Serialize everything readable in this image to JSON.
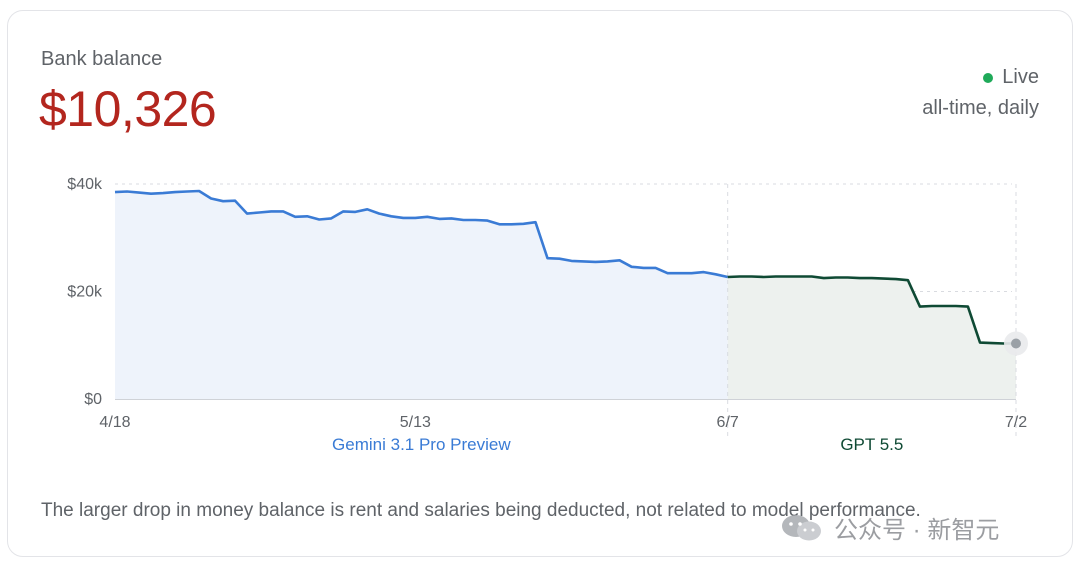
{
  "card": {
    "title": "Bank balance",
    "value": "$10,326",
    "status_label": "Live",
    "range_label": "all-time, daily",
    "footnote": "The larger drop in money balance is rent and salaries being deducted, not related to model performance.",
    "watermark": "公众号 · 新智元"
  },
  "colors": {
    "value": "#b3261e",
    "live": "#1faa59",
    "gemini_line": "#3a7bd5",
    "gemini_fill": "#eef3fb",
    "gpt_line": "#0f4a34",
    "gpt_fill": "#edf1ee",
    "grid": "#d9dbe0",
    "endpoint": "#9aa0a6"
  },
  "chart_data": {
    "type": "line",
    "ylim": [
      0,
      40000
    ],
    "y_ticks": [
      {
        "value": 0,
        "label": "$0"
      },
      {
        "value": 20000,
        "label": "$20k"
      },
      {
        "value": 40000,
        "label": "$40k"
      }
    ],
    "x_ticks": [
      "4/18",
      "5/13",
      "6/7",
      "7/2"
    ],
    "grid": true,
    "periods": [
      {
        "name": "Gemini 3.1 Pro Preview",
        "start": 0,
        "end": 51
      },
      {
        "name": "GPT 5.5",
        "start": 51,
        "end": 75
      }
    ],
    "series": [
      {
        "name": "Gemini 3.1 Pro Preview",
        "x": [
          0,
          1,
          2,
          3,
          4,
          5,
          6,
          7,
          8,
          9,
          10,
          11,
          12,
          13,
          14,
          15,
          16,
          17,
          18,
          19,
          20,
          21,
          22,
          23,
          24,
          25,
          26,
          27,
          28,
          29,
          30,
          31,
          32,
          33,
          34,
          35,
          36,
          37,
          38,
          39,
          40,
          41,
          42,
          43,
          44,
          45,
          46,
          47,
          48,
          49,
          50,
          51
        ],
        "values": [
          38500,
          38600,
          38400,
          38200,
          38300,
          38500,
          38600,
          38700,
          37300,
          36800,
          36900,
          34500,
          34700,
          34900,
          34900,
          33900,
          34000,
          33400,
          33600,
          34900,
          34800,
          35300,
          34500,
          34000,
          33700,
          33700,
          33900,
          33500,
          33600,
          33300,
          33300,
          33200,
          32500,
          32500,
          32600,
          32900,
          26200,
          26100,
          25700,
          25600,
          25500,
          25600,
          25800,
          24600,
          24400,
          24400,
          23400,
          23400,
          23400,
          23600,
          23200,
          22700
        ]
      },
      {
        "name": "GPT 5.5",
        "x": [
          51,
          52,
          53,
          54,
          55,
          56,
          57,
          58,
          59,
          60,
          61,
          62,
          63,
          64,
          65,
          66,
          67,
          68,
          69,
          70,
          71,
          72,
          73,
          74,
          75
        ],
        "values": [
          22700,
          22800,
          22800,
          22700,
          22800,
          22800,
          22800,
          22800,
          22500,
          22600,
          22600,
          22500,
          22500,
          22400,
          22300,
          22100,
          17200,
          17300,
          17300,
          17300,
          17200,
          10500,
          10400,
          10326,
          10326
        ]
      }
    ]
  }
}
